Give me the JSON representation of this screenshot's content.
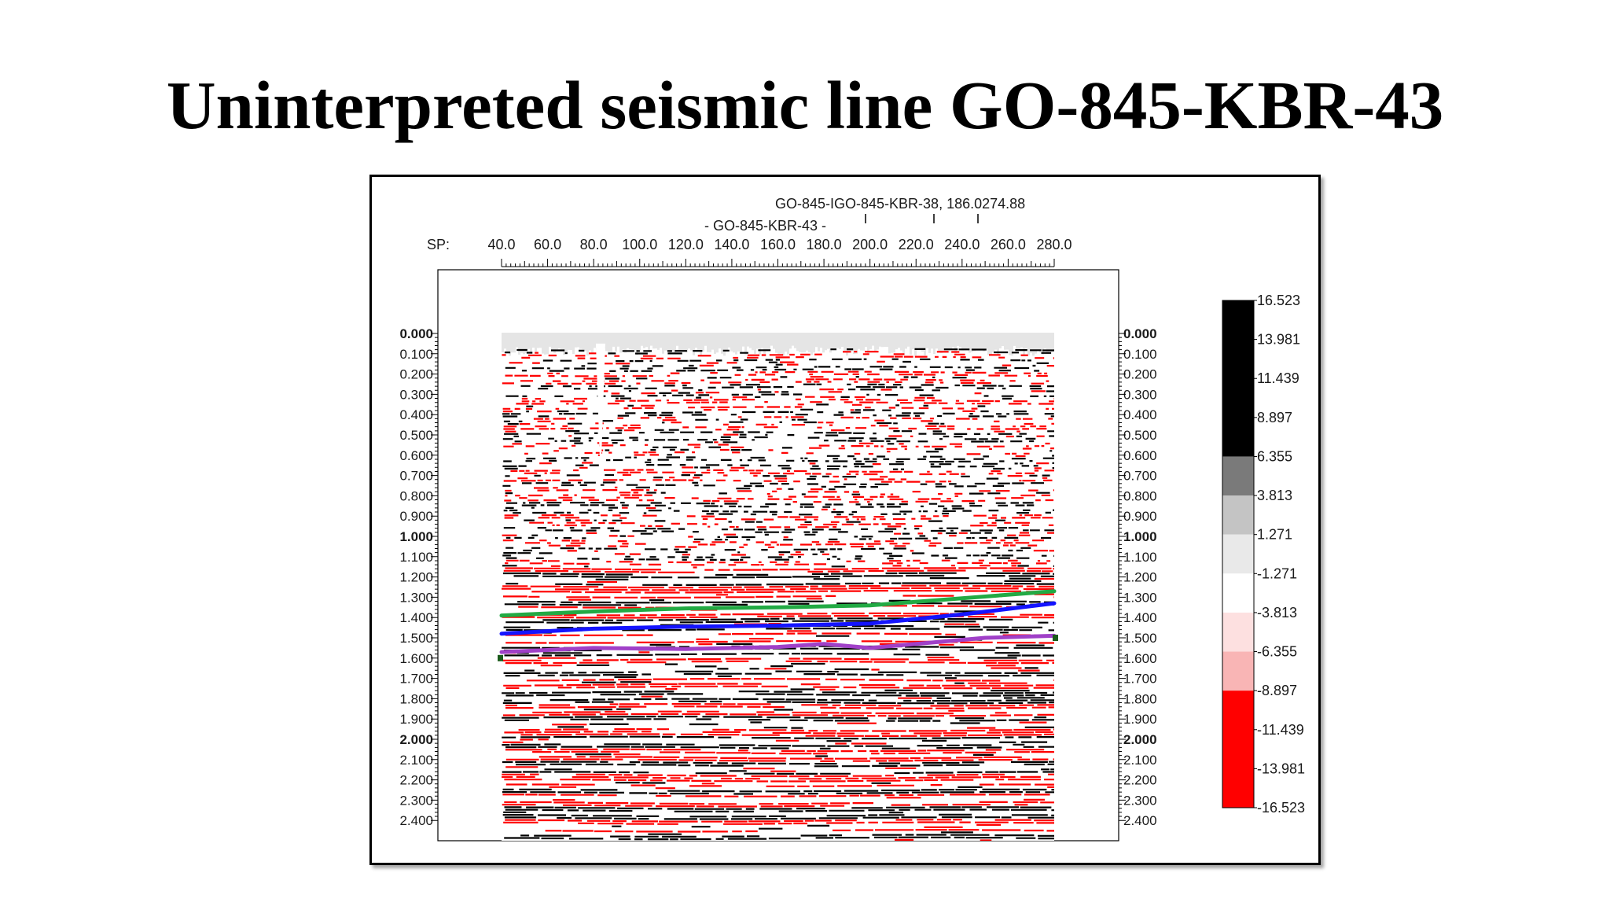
{
  "slide": {
    "title": "Uninterpreted seismic line GO-845-KBR-43"
  },
  "chart_data": {
    "type": "heatmap",
    "title": "",
    "header": {
      "tie_label": "GO-845-IGO-845-KBR-38, 186.0274.88",
      "line_label": "- GO-845-KBR-43 -",
      "sp_label": "SP:"
    },
    "sp_ticks": [
      "40.0",
      "60.0",
      "80.0",
      "100.0",
      "120.0",
      "140.0",
      "160.0",
      "180.0",
      "200.0",
      "220.0",
      "240.0",
      "260.0",
      "280.0"
    ],
    "time_ticks": [
      "0.000",
      "0.100",
      "0.200",
      "0.300",
      "0.400",
      "0.500",
      "0.600",
      "0.700",
      "0.800",
      "0.900",
      "1.000",
      "1.100",
      "1.200",
      "1.300",
      "1.400",
      "1.500",
      "1.600",
      "1.700",
      "1.800",
      "1.900",
      "2.000",
      "2.100",
      "2.200",
      "2.300",
      "2.400"
    ],
    "bold_time_ticks": [
      "0.000",
      "1.000",
      "2.000"
    ],
    "xlim": [
      40,
      280
    ],
    "ylim": [
      0.0,
      2.45
    ],
    "colorbar": {
      "labels": [
        "16.523",
        "13.981",
        "11.439",
        "8.897",
        "6.355",
        "3.813",
        "1.271",
        "-1.271",
        "-3.813",
        "-6.355",
        "-8.897",
        "-11.439",
        "-13.981",
        "-16.523"
      ],
      "bins": [
        {
          "from": 16.523,
          "to": 6.355,
          "color": "#000000"
        },
        {
          "from": 6.355,
          "to": 3.813,
          "color": "#7a7a7a"
        },
        {
          "from": 3.813,
          "to": 1.271,
          "color": "#c4c4c4"
        },
        {
          "from": 1.271,
          "to": -1.271,
          "color": "#e9e9e9"
        },
        {
          "from": -1.271,
          "to": -3.813,
          "color": "#ffffff"
        },
        {
          "from": -3.813,
          "to": -6.355,
          "color": "#fde0e0"
        },
        {
          "from": -6.355,
          "to": -8.897,
          "color": "#f9b5b5"
        },
        {
          "from": -8.897,
          "to": -16.523,
          "color": "#ff0000"
        }
      ]
    },
    "horizons": [
      {
        "color": "#22aa44",
        "points": [
          [
            40,
            1.39
          ],
          [
            80,
            1.37
          ],
          [
            120,
            1.355
          ],
          [
            160,
            1.35
          ],
          [
            200,
            1.34
          ],
          [
            240,
            1.305
          ],
          [
            280,
            1.27
          ]
        ]
      },
      {
        "color": "#1414ff",
        "points": [
          [
            40,
            1.48
          ],
          [
            80,
            1.455
          ],
          [
            120,
            1.445
          ],
          [
            160,
            1.44
          ],
          [
            200,
            1.43
          ],
          [
            240,
            1.385
          ],
          [
            280,
            1.33
          ]
        ]
      },
      {
        "color": "#a040c8",
        "points": [
          [
            40,
            1.57
          ],
          [
            80,
            1.55
          ],
          [
            120,
            1.555
          ],
          [
            160,
            1.545
          ],
          [
            180,
            1.53
          ],
          [
            200,
            1.55
          ],
          [
            220,
            1.53
          ],
          [
            250,
            1.5
          ],
          [
            280,
            1.49
          ]
        ]
      }
    ],
    "colors": {
      "positive": "#000000",
      "negative": "#ff0000",
      "background_fill": "#e5e5e5"
    }
  }
}
